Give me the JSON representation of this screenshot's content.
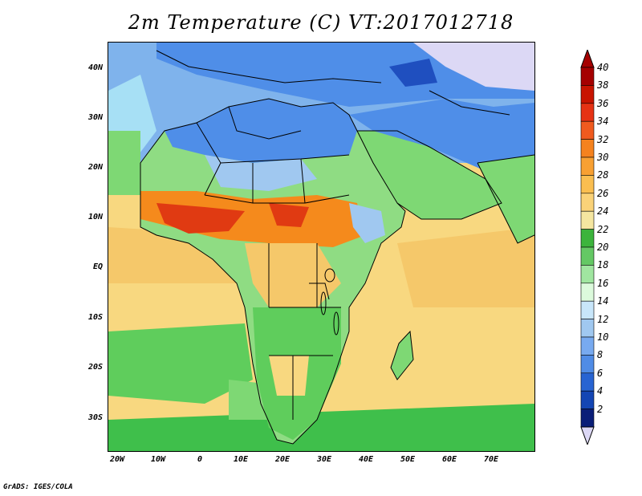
{
  "title": "2m Temperature (C) VT:2017012718",
  "footer": "GrADS: IGES/COLA",
  "map": {
    "variable": "2m Temperature",
    "units": "C",
    "valid_time": "2017012718",
    "lat_labels": [
      "40N",
      "30N",
      "20N",
      "10N",
      "EQ",
      "10S",
      "20S",
      "30S"
    ],
    "lon_labels": [
      "20W",
      "10W",
      "0",
      "10E",
      "20E",
      "30E",
      "40E",
      "50E",
      "60E",
      "70E"
    ],
    "colors": {
      "ocean_warm": "#f5c86a",
      "ocean_tropics": "#f8d880",
      "land_green": "#7ed874",
      "land_darkgreen": "#3fbf4b",
      "hot_red": "#e03a12",
      "hot_orange": "#f58a1c",
      "cold_blue": "#4f8ee8",
      "cold_deep": "#1f4fbf",
      "snow": "#dcd8f5",
      "border": "#000000"
    }
  },
  "colorbar": {
    "labels": [
      "40",
      "38",
      "36",
      "34",
      "32",
      "30",
      "28",
      "26",
      "24",
      "22",
      "20",
      "18",
      "16",
      "14",
      "12",
      "10",
      "8",
      "6",
      "4",
      "2"
    ],
    "colors": [
      "#a50000",
      "#c81400",
      "#e63214",
      "#f05a1e",
      "#f5821e",
      "#f8a032",
      "#fabe50",
      "#fad278",
      "#f5e6a0",
      "#3cb43c",
      "#64c864",
      "#a0e6a0",
      "#dcfadc",
      "#c8e6fa",
      "#a0c8f0",
      "#78aaf0",
      "#508ce6",
      "#2864d2",
      "#1446b4",
      "#0a1e78"
    ],
    "low_end_color": "#dcd8f5",
    "high_end_color": "#a50000"
  }
}
